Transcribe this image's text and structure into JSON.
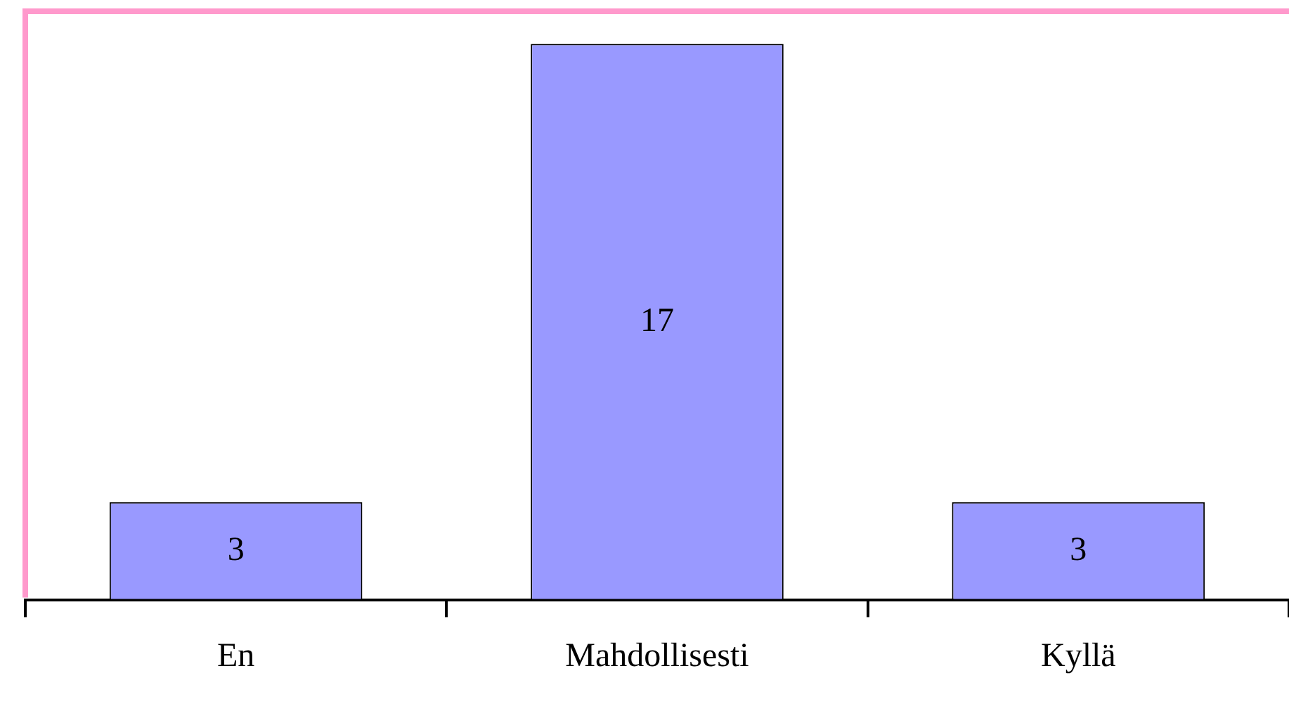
{
  "chart_data": {
    "type": "bar",
    "categories": [
      "En",
      "Mahdollisesti",
      "Kyllä"
    ],
    "values": [
      3,
      17,
      3
    ],
    "color": "#9999ff",
    "relative": false,
    "data_labels": true,
    "grid": false,
    "legend": false
  }
}
